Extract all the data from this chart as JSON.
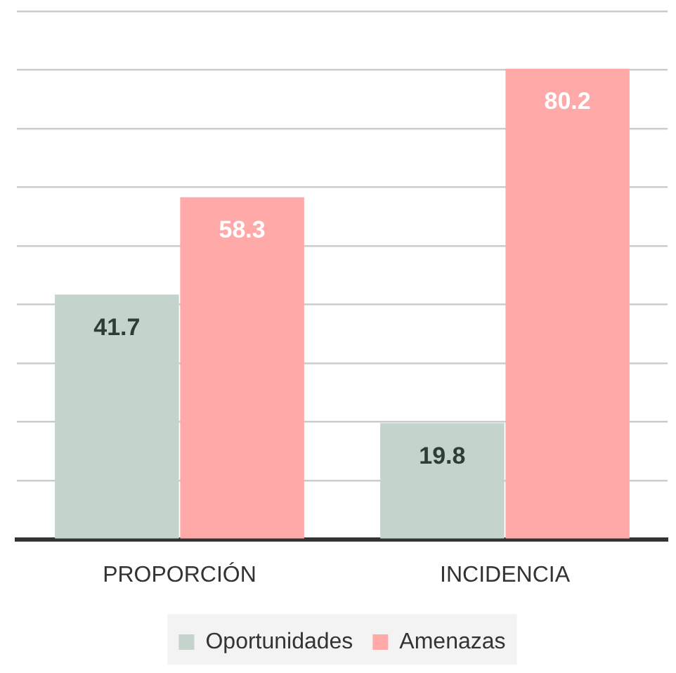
{
  "chart_data": {
    "type": "bar",
    "categories": [
      "PROPORCIÓN",
      "INCIDENCIA"
    ],
    "series": [
      {
        "name": "Oportunidades",
        "color": "#c4d3cc",
        "values": [
          41.7,
          19.8
        ]
      },
      {
        "name": "Amenazas",
        "color": "#ffa9a9",
        "values": [
          58.3,
          80.2
        ]
      }
    ],
    "ylim": [
      0,
      90
    ],
    "yticks": [
      0,
      {
        "value": 10,
        "label": null
      },
      {
        "value": 20,
        "label": null
      },
      {
        "value": 30,
        "label": null
      },
      {
        "value": 40,
        "label": null
      },
      {
        "value": 50,
        "label": null
      },
      {
        "value": 60,
        "label": null
      },
      {
        "value": 70,
        "label": null
      },
      {
        "value": 80,
        "label": null
      },
      {
        "value": 90,
        "label": null
      }
    ],
    "tick_labels": "x",
    "grid": "y",
    "legend": "bottom",
    "data_labels": true
  }
}
